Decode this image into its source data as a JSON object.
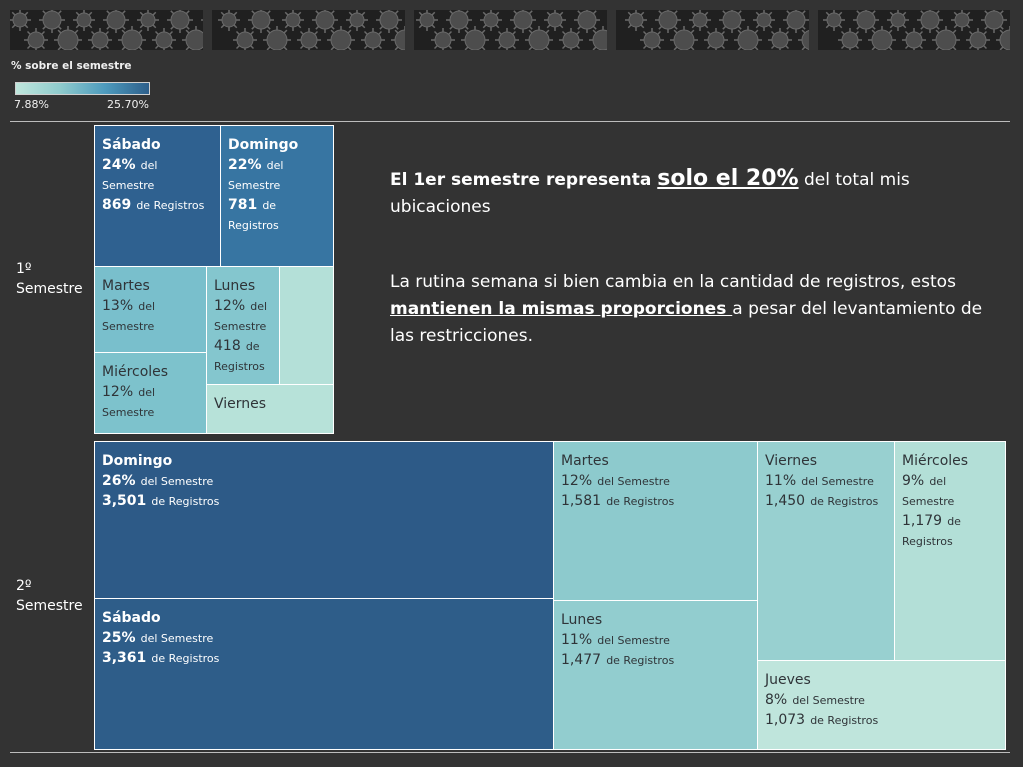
{
  "legend": {
    "title": "% sobre el semestre",
    "min_label": "7.88%",
    "max_label": "25.70%"
  },
  "row_labels": {
    "s1": [
      "1º",
      "Semestre"
    ],
    "s2": [
      "2º",
      "Semestre"
    ]
  },
  "narrative": {
    "p1_bold": "El 1er semestre representa ",
    "p1_big": "solo el 20%",
    "p1_rest": " del total mis ubicaciones",
    "p2_start": "La rutina semana si bien cambia en la cantidad de registros, estos ",
    "p2_bold": "mantienen la mismas proporciones ",
    "p2_end": "a pesar del levantamiento de las restricciones."
  },
  "colors": {
    "dark_tile": "#2d5f8b",
    "mid_tile": "#3a7aa6",
    "light_tile": "#8fcbcd",
    "lightest_tile": "#b4e0d8",
    "background": "#333333"
  },
  "chart_data": {
    "type": "treemap",
    "color_scale": {
      "min": 7.88,
      "max": 25.7,
      "unit": "%"
    },
    "semesters": [
      {
        "name": "1º Semestre",
        "cells": [
          {
            "day": "Sábado",
            "pct_label": "24%",
            "pct_text": "del Semestre",
            "count_label": "869",
            "count_text": "de Registros",
            "pct": 24,
            "count": 869
          },
          {
            "day": "Domingo",
            "pct_label": "22%",
            "pct_text": "del Semestre",
            "count_label": "781",
            "count_text": "de Registros",
            "pct": 22,
            "count": 781
          },
          {
            "day": "Martes",
            "pct_label": "13%",
            "pct_text": "del Semestre",
            "count_label": "",
            "count_text": "",
            "pct": 13
          },
          {
            "day": "Lunes",
            "pct_label": "12%",
            "pct_text": "del Semestre",
            "count_label": "418",
            "count_text": "de Registros",
            "pct": 12,
            "count": 418
          },
          {
            "day": "Miércoles",
            "pct_label": "12%",
            "pct_text": "del Semestre",
            "count_label": "",
            "count_text": "",
            "pct": 12
          },
          {
            "day": "Viernes",
            "pct_label": "",
            "pct_text": "",
            "count_label": "",
            "count_text": ""
          },
          {
            "day": "",
            "pct_label": "",
            "pct_text": "",
            "count_label": "",
            "count_text": ""
          }
        ]
      },
      {
        "name": "2º Semestre",
        "cells": [
          {
            "day": "Domingo",
            "pct_label": "26%",
            "pct_text": "del Semestre",
            "count_label": "3,501",
            "count_text": "de Registros",
            "pct": 26,
            "count": 3501
          },
          {
            "day": "Sábado",
            "pct_label": "25%",
            "pct_text": "del Semestre",
            "count_label": "3,361",
            "count_text": "de Registros",
            "pct": 25,
            "count": 3361
          },
          {
            "day": "Martes",
            "pct_label": "12%",
            "pct_text": "del Semestre",
            "count_label": "1,581",
            "count_text": "de Registros",
            "pct": 12,
            "count": 1581
          },
          {
            "day": "Lunes",
            "pct_label": "11%",
            "pct_text": "del Semestre",
            "count_label": "1,477",
            "count_text": "de Registros",
            "pct": 11,
            "count": 1477
          },
          {
            "day": "Viernes",
            "pct_label": "11%",
            "pct_text": "del Semestre",
            "count_label": "1,450",
            "count_text": "de Registros",
            "pct": 11,
            "count": 1450
          },
          {
            "day": "Miércoles",
            "pct_label": "9%",
            "pct_text": "del Semestre",
            "count_label": "1,179",
            "count_text": "de Registros",
            "pct": 9,
            "count": 1179
          },
          {
            "day": "Jueves",
            "pct_label": "8%",
            "pct_text": "del Semestre",
            "count_label": "1,073",
            "count_text": "de Registros",
            "pct": 8,
            "count": 1073
          }
        ]
      }
    ]
  }
}
